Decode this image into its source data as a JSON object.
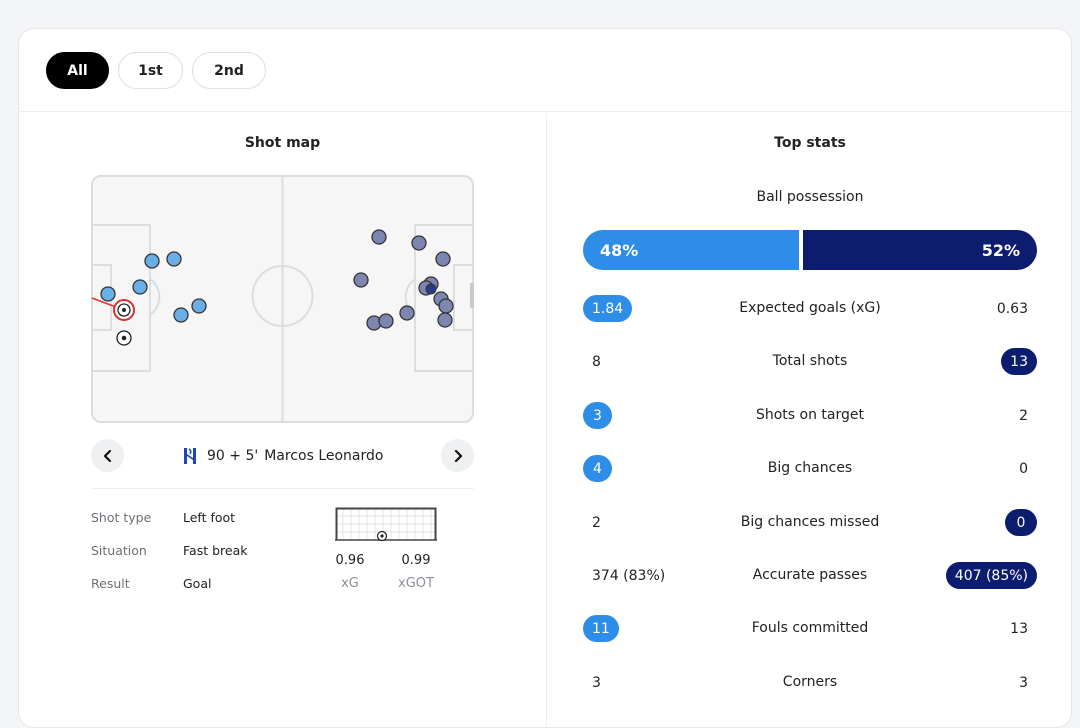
{
  "periods": [
    "All",
    "1st",
    "2nd"
  ],
  "active_period": "All",
  "shot_map": {
    "title": "Shot map",
    "selected_shot": {
      "minute": "90 + 5'",
      "player": "Marcos Leonardo",
      "shot_type_label": "Shot type",
      "shot_type": "Left foot",
      "situation_label": "Situation",
      "situation": "Fast break",
      "result_label": "Result",
      "result": "Goal",
      "xg": "0.96",
      "xg_label": "xG",
      "xgot": "0.99",
      "xgot_label": "xGOT"
    }
  },
  "top_stats": {
    "title": "Top stats",
    "possession": {
      "label": "Ball possession",
      "home": "48%",
      "away": "52%",
      "home_value": 48,
      "away_value": 52
    },
    "rows": [
      {
        "name": "Expected goals (xG)",
        "home": "1.84",
        "away": "0.63",
        "highlight": "home"
      },
      {
        "name": "Total shots",
        "home": "8",
        "away": "13",
        "highlight": "away"
      },
      {
        "name": "Shots on target",
        "home": "3",
        "away": "2",
        "highlight": "home"
      },
      {
        "name": "Big chances",
        "home": "4",
        "away": "0",
        "highlight": "home"
      },
      {
        "name": "Big chances missed",
        "home": "2",
        "away": "0",
        "highlight": "away"
      },
      {
        "name": "Accurate passes",
        "home": "374 (83%)",
        "away": "407 (85%)",
        "highlight": "away"
      },
      {
        "name": "Fouls committed",
        "home": "11",
        "away": "13",
        "highlight": "home"
      },
      {
        "name": "Corners",
        "home": "3",
        "away": "3",
        "highlight": "none"
      }
    ]
  },
  "colors": {
    "home": "#2e8de6",
    "away": "#0c1c6e",
    "home_shot": "#6aaee8",
    "away_shot": "#7d86b0"
  }
}
